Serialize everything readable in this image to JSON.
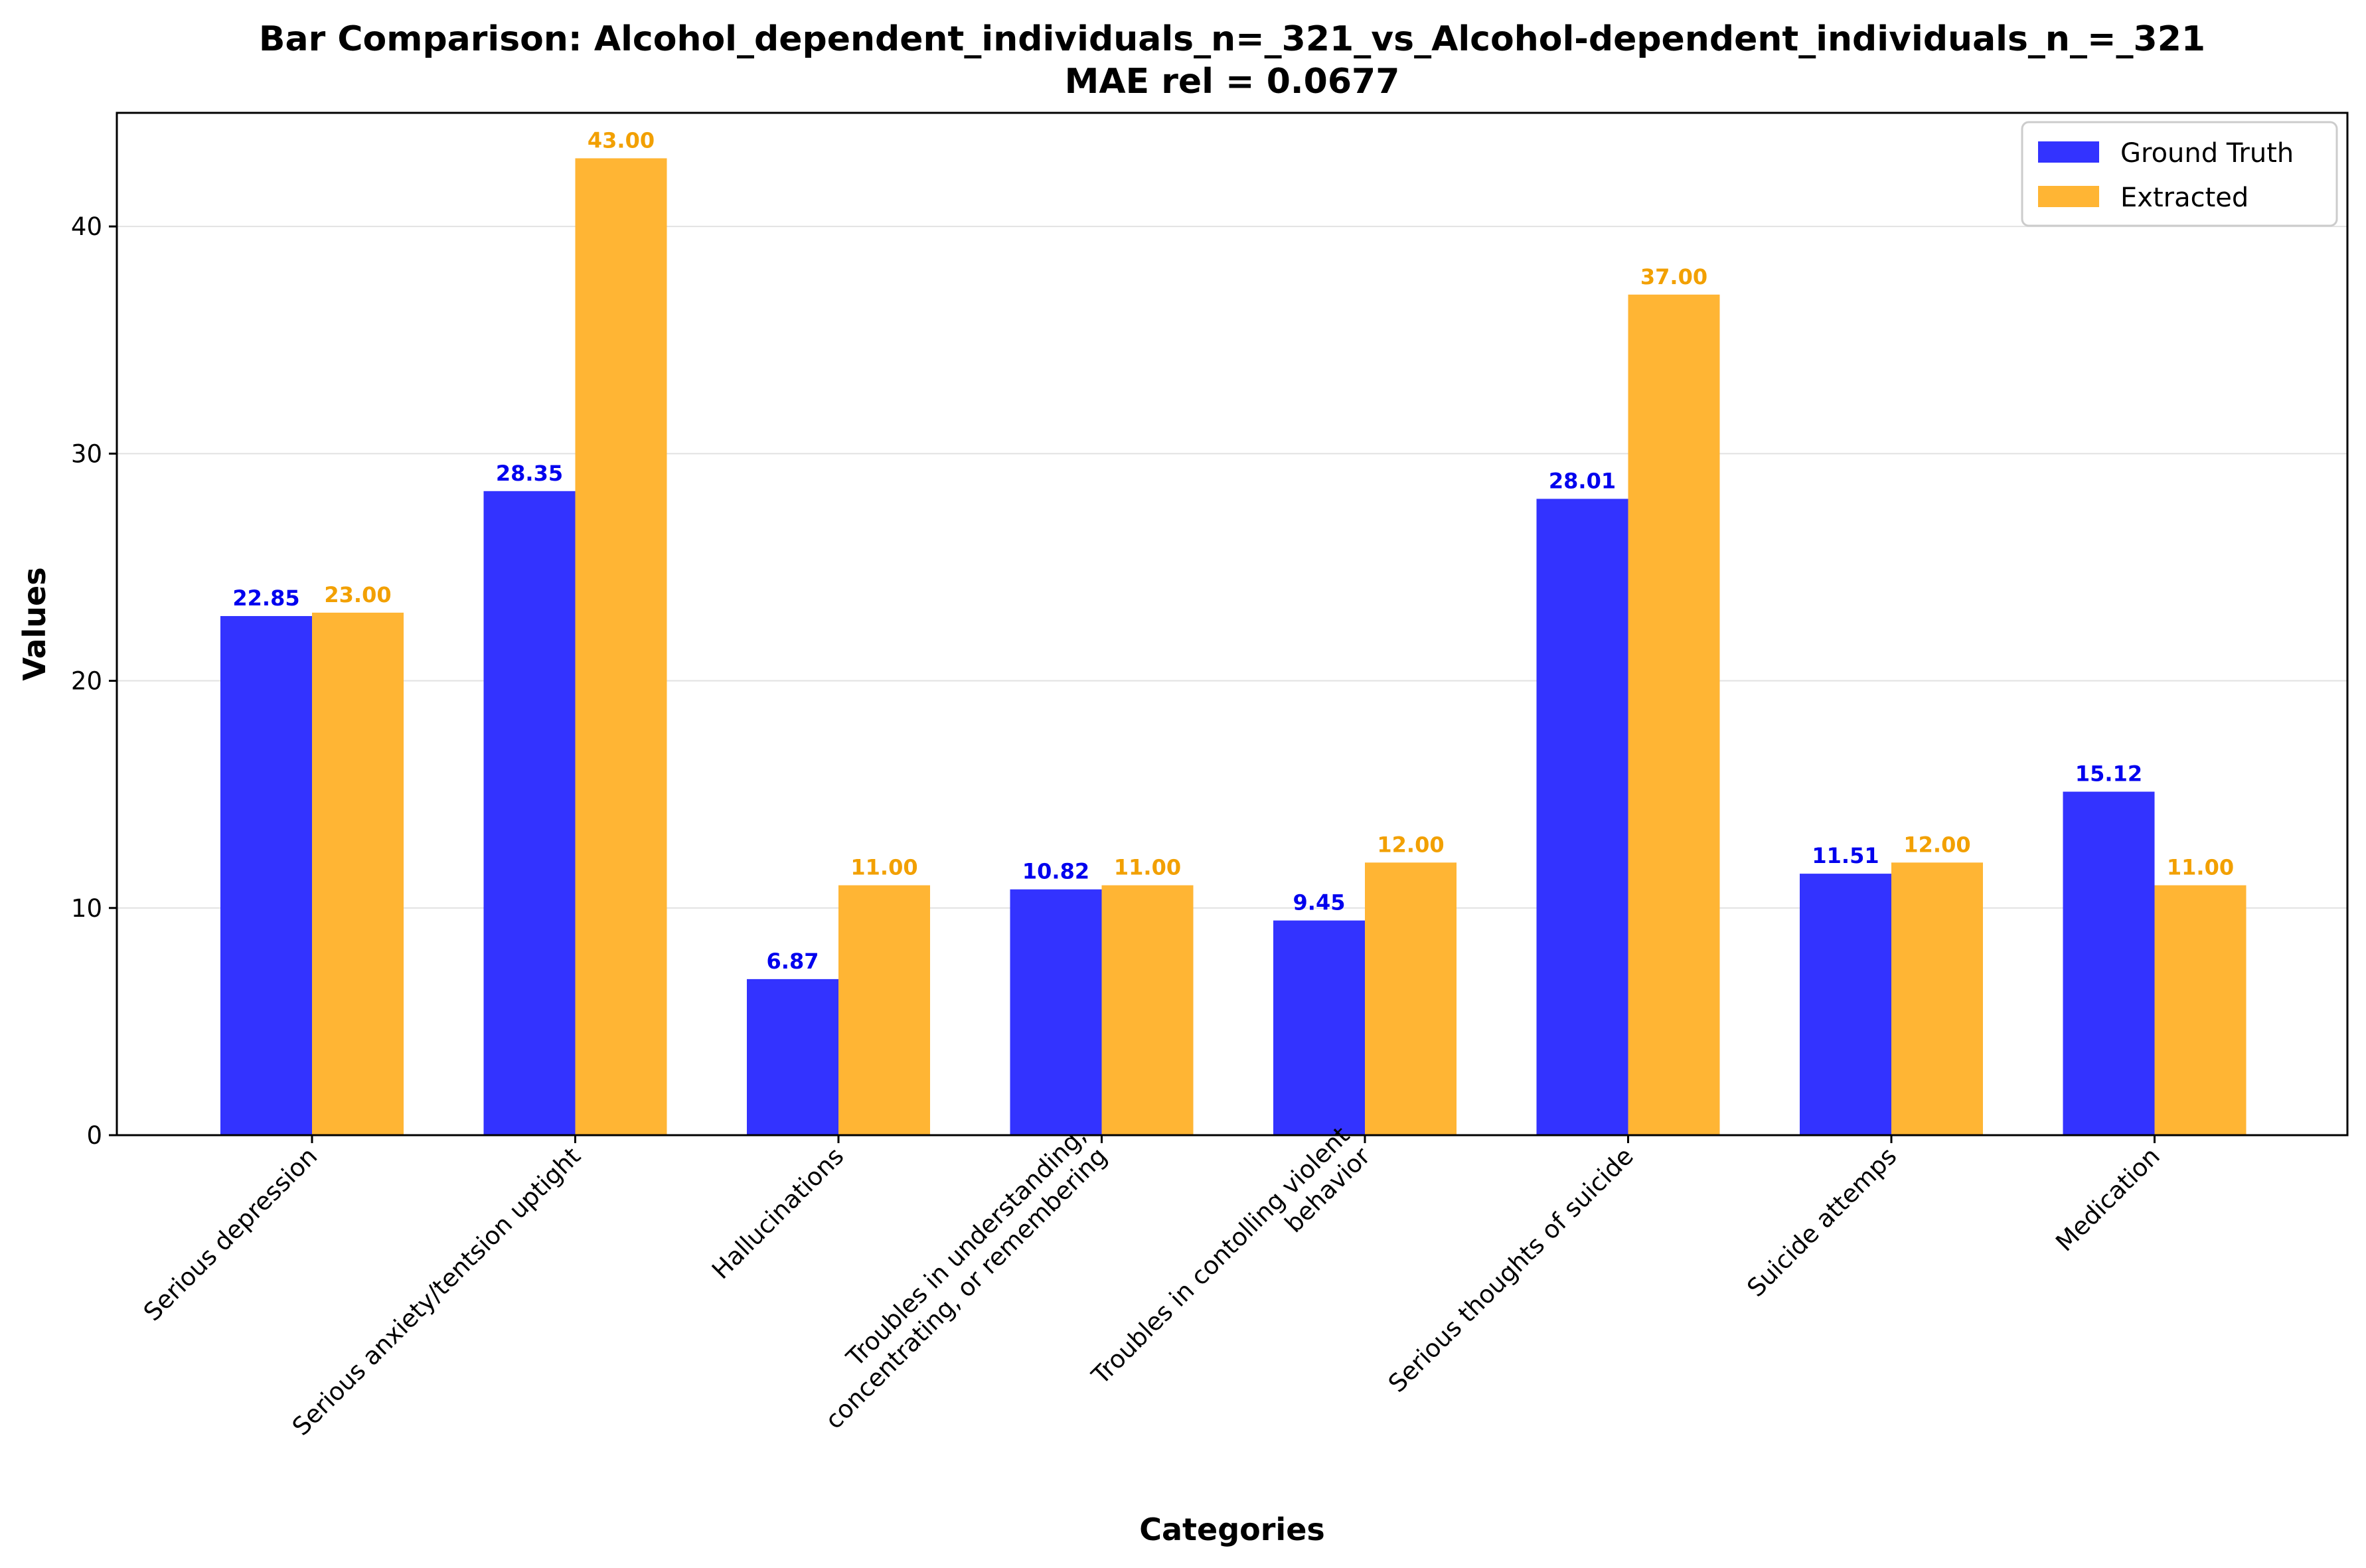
{
  "chart_data": {
    "type": "bar",
    "title": "Bar Comparison: Alcohol_dependent_individuals_n=_321_vs_Alcohol-dependent_individuals_n_=_321",
    "subtitle": "MAE rel = 0.0677",
    "xlabel": "Categories",
    "ylabel": "Values",
    "ylim": [
      0,
      45
    ],
    "yticks": [
      "0",
      "10",
      "20",
      "30",
      "40"
    ],
    "grid": "y",
    "legend_position": "top-right",
    "categories": [
      [
        "Serious depression"
      ],
      [
        "Serious anxiety/tentsion uptight"
      ],
      [
        "Hallucinations"
      ],
      [
        "Troubles in understanding,",
        "concentrating, or remembering"
      ],
      [
        "Troubles in contolling violent",
        "behavior"
      ],
      [
        "Serious thoughts of suicide"
      ],
      [
        "Suicide attemps"
      ],
      [
        "Medication"
      ]
    ],
    "series": [
      {
        "name": "Ground Truth",
        "color": "#3333ff",
        "label_color": "#0000ee",
        "values": [
          22.85,
          28.35,
          6.87,
          10.82,
          9.45,
          28.01,
          11.51,
          15.12
        ],
        "labels": [
          "22.85",
          "28.35",
          "6.87",
          "10.82",
          "9.45",
          "28.01",
          "11.51",
          "15.12"
        ]
      },
      {
        "name": "Extracted",
        "color": "#ffb534",
        "label_color": "#f2a000",
        "values": [
          23.0,
          43.0,
          11.0,
          11.0,
          12.0,
          37.0,
          12.0,
          11.0
        ],
        "labels": [
          "23.00",
          "43.00",
          "11.00",
          "11.00",
          "12.00",
          "37.00",
          "12.00",
          "11.00"
        ]
      }
    ]
  }
}
